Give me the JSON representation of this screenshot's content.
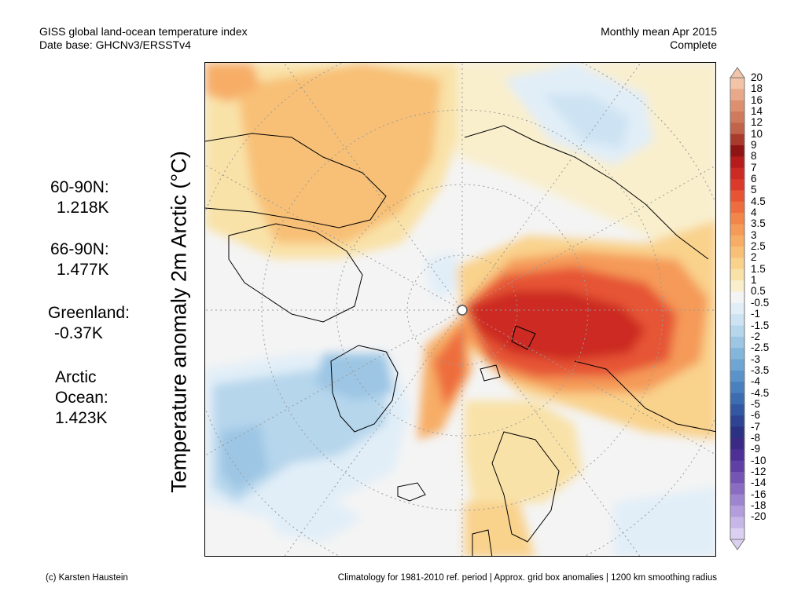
{
  "header": {
    "title_line1": "GISS global land-ocean temperature index",
    "title_line2": "Date base: GHCNv3/ERSSTv4",
    "period_line1": "Monthly mean Apr 2015",
    "period_line2": "Complete"
  },
  "map": {
    "axis_label": "Temperature anomaly 2m Arctic (°C)",
    "projection": "north polar stereographic",
    "region_stats": [
      {
        "label": "60-90N:",
        "value": "1.218K"
      },
      {
        "label": "66-90N:",
        "value": "1.477K"
      },
      {
        "label": "Greenland:",
        "value": "-0.37K"
      },
      {
        "label": "Arctic",
        "label2": "Ocean:",
        "value": "1.423K"
      }
    ]
  },
  "colorbar": {
    "ticks": [
      "20",
      "18",
      "16",
      "14",
      "12",
      "10",
      "9",
      "8",
      "7",
      "6",
      "5",
      "4.5",
      "4",
      "3.5",
      "3",
      "2.5",
      "2",
      "1.5",
      "1",
      "0.5",
      "-0.5",
      "-1",
      "-1.5",
      "-2",
      "-2.5",
      "-3",
      "-3.5",
      "-4",
      "-4.5",
      "-5",
      "-6",
      "-7",
      "-8",
      "-9",
      "-10",
      "-12",
      "-14",
      "-16",
      "-18",
      "-20"
    ],
    "colors": [
      "#f2c4a8",
      "#e8a98a",
      "#dc9070",
      "#cf7a5c",
      "#c0634a",
      "#a83a2e",
      "#8f1414",
      "#b71c1c",
      "#cc2a24",
      "#db3a2a",
      "#e65434",
      "#ee6d3e",
      "#f2854a",
      "#f59a58",
      "#f7ad66",
      "#f8c076",
      "#f9d28c",
      "#f9e2a8",
      "#f9efcd",
      "#f4f4f4",
      "#e1eef8",
      "#cde3f3",
      "#b6d6ec",
      "#9cc6e4",
      "#84b6db",
      "#6ea5d2",
      "#5a93c8",
      "#4a80bd",
      "#3d6cb1",
      "#3357a3",
      "#2e4393",
      "#2b3183",
      "#3a2a86",
      "#4d2f95",
      "#6040a5",
      "#7555b4",
      "#8a6dc2",
      "#9e85cf",
      "#b39ddc",
      "#c7b6e8",
      "#dbd0f2"
    ]
  },
  "footer": {
    "credit": "(c) Karsten Haustein",
    "note": "Climatology for 1981-2010 ref. period | Approx. grid box anomalies | 1200 km smoothing radius"
  }
}
